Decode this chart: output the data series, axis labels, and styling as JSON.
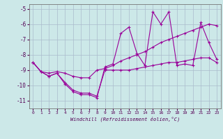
{
  "xlabel": "Windchill (Refroidissement éolien,°C)",
  "background_color": "#cce8e8",
  "grid_color": "#aabbcc",
  "line_color": "#990099",
  "xlim": [
    -0.5,
    23.5
  ],
  "ylim": [
    -11.5,
    -4.7
  ],
  "xticks": [
    0,
    1,
    2,
    3,
    4,
    5,
    6,
    7,
    8,
    9,
    10,
    11,
    12,
    13,
    14,
    15,
    16,
    17,
    18,
    19,
    20,
    21,
    22,
    23
  ],
  "yticks": [
    -11,
    -10,
    -9,
    -8,
    -7,
    -6,
    -5
  ],
  "line1_x": [
    0,
    1,
    2,
    3,
    4,
    5,
    6,
    7,
    8,
    9,
    10,
    11,
    12,
    13,
    14,
    15,
    16,
    17,
    18,
    19,
    20,
    21,
    22,
    23
  ],
  "line1_y": [
    -8.5,
    -9.1,
    -9.4,
    -9.2,
    -9.9,
    -10.4,
    -10.6,
    -10.6,
    -10.8,
    -8.8,
    -8.6,
    -6.6,
    -6.2,
    -7.9,
    -8.7,
    -5.2,
    -6.0,
    -5.2,
    -8.7,
    -8.6,
    -8.7,
    -5.9,
    -7.2,
    -8.3
  ],
  "line2_x": [
    0,
    1,
    2,
    3,
    4,
    5,
    6,
    7,
    8,
    9,
    10,
    11,
    12,
    13,
    14,
    15,
    16,
    17,
    18,
    19,
    20,
    21,
    22,
    23
  ],
  "line2_y": [
    -8.5,
    -9.1,
    -9.2,
    -9.1,
    -9.2,
    -9.4,
    -9.5,
    -9.5,
    -9.0,
    -8.9,
    -8.7,
    -8.4,
    -8.2,
    -8.0,
    -7.8,
    -7.5,
    -7.2,
    -7.0,
    -6.8,
    -6.6,
    -6.4,
    -6.2,
    -6.0,
    -6.1
  ],
  "line3_x": [
    0,
    1,
    2,
    3,
    4,
    5,
    6,
    7,
    8,
    9,
    10,
    11,
    12,
    13,
    14,
    15,
    16,
    17,
    18,
    19,
    20,
    21,
    22,
    23
  ],
  "line3_y": [
    -8.5,
    -9.1,
    -9.4,
    -9.2,
    -9.8,
    -10.3,
    -10.5,
    -10.5,
    -10.7,
    -9.0,
    -9.0,
    -9.0,
    -9.0,
    -8.9,
    -8.8,
    -8.7,
    -8.6,
    -8.5,
    -8.5,
    -8.4,
    -8.3,
    -8.2,
    -8.2,
    -8.5
  ]
}
